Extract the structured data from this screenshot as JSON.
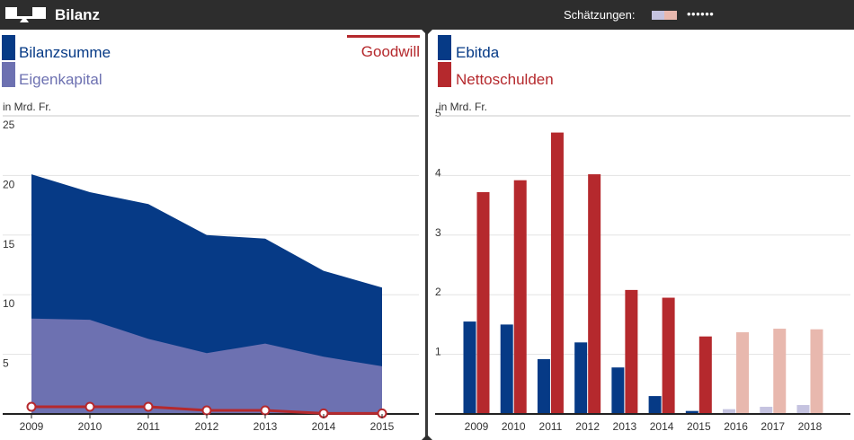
{
  "header": {
    "title": "Bilanz",
    "estimates_label": "Schätzungen:",
    "estimates_dots": "••••••",
    "estimate_colors": [
      "#c5c3e0",
      "#e8b8ae"
    ]
  },
  "chart_data": [
    {
      "type": "area",
      "title": "Bilanz",
      "unit_label": "in Mrd. Fr.",
      "x": [
        "2009",
        "2010",
        "2011",
        "2012",
        "2013",
        "2014",
        "2015"
      ],
      "ylim": [
        0,
        25
      ],
      "yticks": [
        "5",
        "10",
        "15",
        "20",
        "25"
      ],
      "series": [
        {
          "name": "Bilanzsumme",
          "kind": "area",
          "color": "#063a86",
          "values": [
            20.1,
            18.6,
            17.6,
            15.0,
            14.7,
            12.0,
            10.6
          ]
        },
        {
          "name": "Eigenkapital",
          "kind": "area",
          "color": "#6d71b1",
          "values": [
            8.0,
            7.9,
            6.3,
            5.1,
            5.9,
            4.8,
            4.0
          ]
        },
        {
          "name": "Goodwill",
          "kind": "line",
          "color": "#b5292d",
          "values": [
            0.6,
            0.6,
            0.6,
            0.3,
            0.3,
            0.05,
            0.05
          ]
        }
      ]
    },
    {
      "type": "bar",
      "unit_label": "in Mrd. Fr.",
      "categories": [
        "2009",
        "2010",
        "2011",
        "2012",
        "2013",
        "2014",
        "2015",
        "2016",
        "2017",
        "2018"
      ],
      "ylim": [
        0,
        5
      ],
      "yticks": [
        "1",
        "2",
        "3",
        "4",
        "5"
      ],
      "estimate_from": "2016",
      "series": [
        {
          "name": "Ebitda",
          "color": "#063a86",
          "estimate_color": "#c5c3e0",
          "values": [
            1.55,
            1.5,
            0.92,
            1.2,
            0.78,
            0.3,
            0.05,
            0.08,
            0.12,
            0.15
          ]
        },
        {
          "name": "Nettoschulden",
          "color": "#b5292d",
          "estimate_color": "#e8b8ae",
          "values": [
            3.72,
            3.92,
            4.72,
            4.02,
            2.08,
            1.95,
            1.3,
            1.37,
            1.43,
            1.42
          ]
        }
      ]
    }
  ]
}
